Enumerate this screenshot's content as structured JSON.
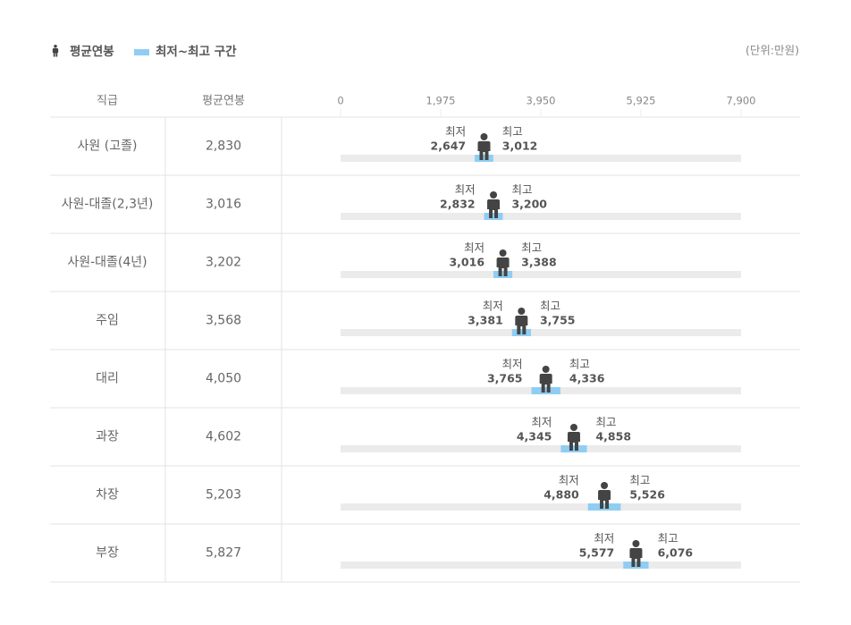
{
  "chart_data": {
    "type": "range",
    "legend": {
      "average": "평균연봉",
      "range": "최저~최고 구간"
    },
    "unit": "(단위:만원)",
    "columns": [
      "직급",
      "평균연봉"
    ],
    "min_label": "최저",
    "max_label": "최고",
    "categories": [
      "사원 (고졸)",
      "사원-대졸(2,3년)",
      "사원-대졸(4년)",
      "주임",
      "대리",
      "과장",
      "차장",
      "부장"
    ],
    "values": [
      2830,
      3016,
      3202,
      3568,
      4050,
      4602,
      5203,
      5827
    ],
    "value_labels": [
      "2,830",
      "3,016",
      "3,202",
      "3,568",
      "4,050",
      "4,602",
      "5,203",
      "5,827"
    ],
    "low": [
      2647,
      2832,
      3016,
      3381,
      3765,
      4345,
      4880,
      5577
    ],
    "low_labels": [
      "2,647",
      "2,832",
      "3,016",
      "3,381",
      "3,765",
      "4,345",
      "4,880",
      "5,577"
    ],
    "high": [
      3012,
      3200,
      3388,
      3755,
      4336,
      4858,
      5526,
      6076
    ],
    "high_labels": [
      "3,012",
      "3,200",
      "3,388",
      "3,755",
      "4,336",
      "4,858",
      "5,526",
      "6,076"
    ],
    "xlim": [
      0,
      7900
    ],
    "xticks": [
      0,
      {
        "value": 1975,
        "label": "1,975"
      },
      {
        "value": 3950,
        "label": "3,950"
      },
      {
        "value": 5925,
        "label": "5,925"
      },
      {
        "value": 7900,
        "label": "7,900"
      }
    ],
    "colors": {
      "range": "#8fcdf3",
      "track": "#ebebeb",
      "icon": "#444444"
    }
  }
}
